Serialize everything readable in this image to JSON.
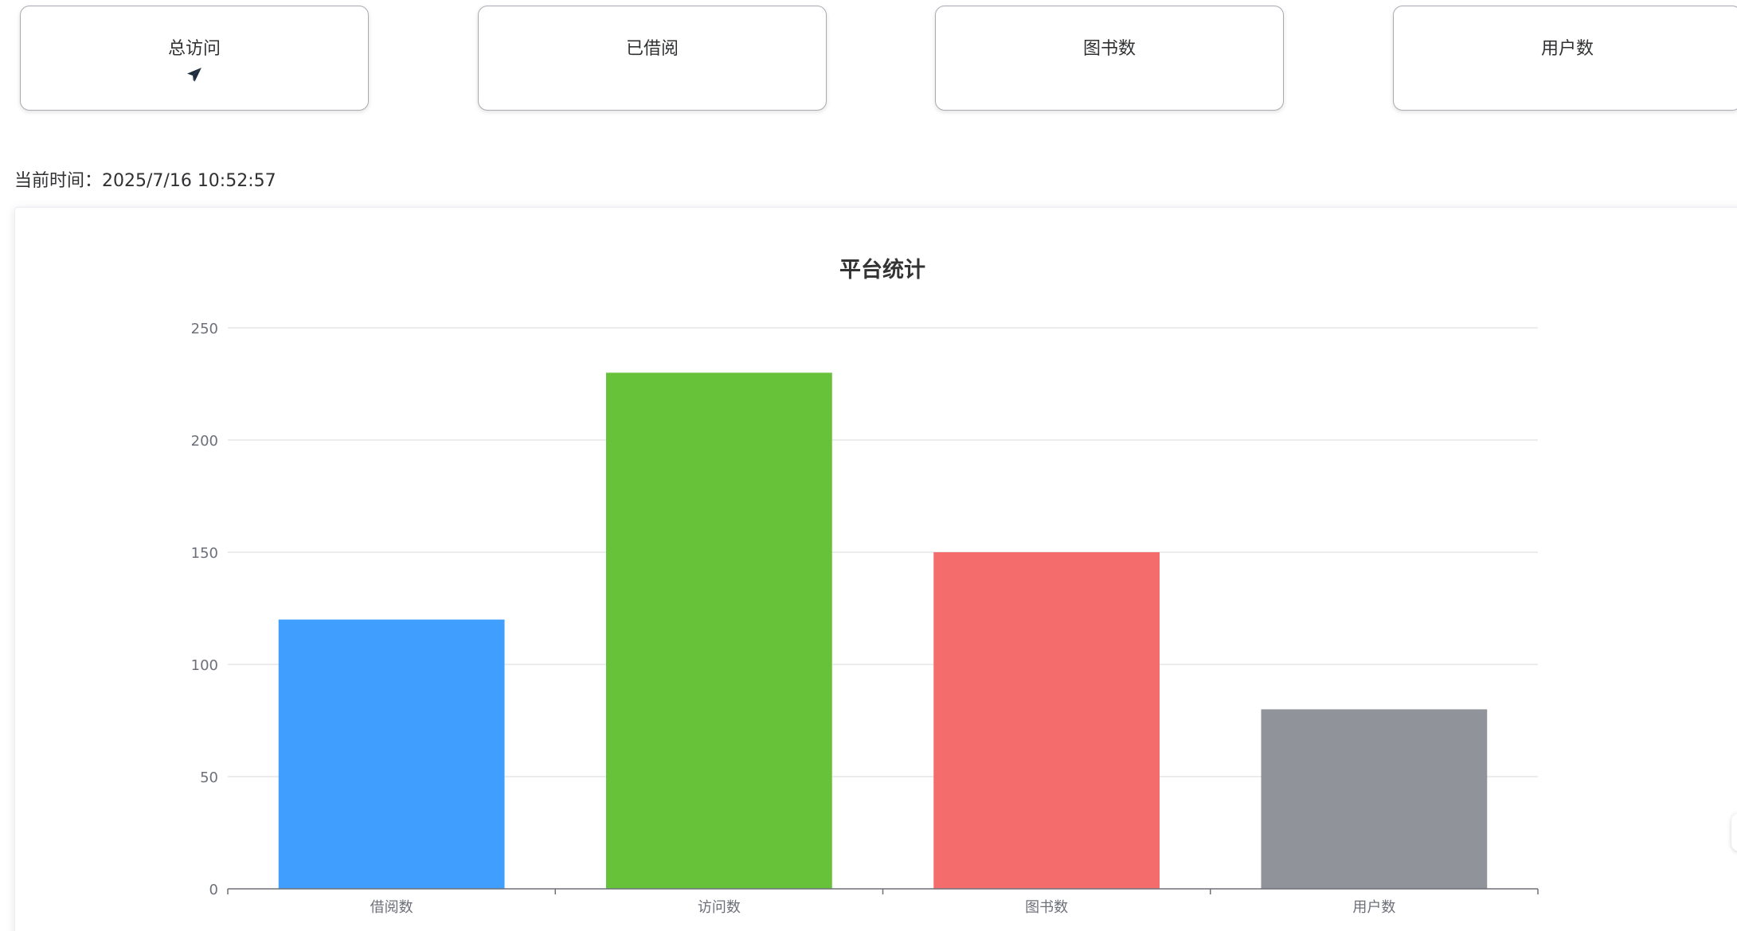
{
  "stat_cards": [
    {
      "label": "总访问",
      "icon": "paper-plane-icon"
    },
    {
      "label": "已借阅"
    },
    {
      "label": "图书数"
    },
    {
      "label": "用户数"
    }
  ],
  "current_time": {
    "label": "当前时间：",
    "value": "2025/7/16 10:52:57"
  },
  "chart_data": {
    "type": "bar",
    "title": "平台统计",
    "categories": [
      "借阅数",
      "访问数",
      "图书数",
      "用户数"
    ],
    "values": [
      120,
      230,
      150,
      80
    ],
    "colors": [
      "#409EFF",
      "#67C23A",
      "#F56C6C",
      "#909399"
    ],
    "ylim": [
      0,
      250
    ],
    "yticks": [
      0,
      50,
      100,
      150,
      200,
      250
    ],
    "xlabel": "",
    "ylabel": "",
    "grid": true,
    "legend": "none"
  }
}
